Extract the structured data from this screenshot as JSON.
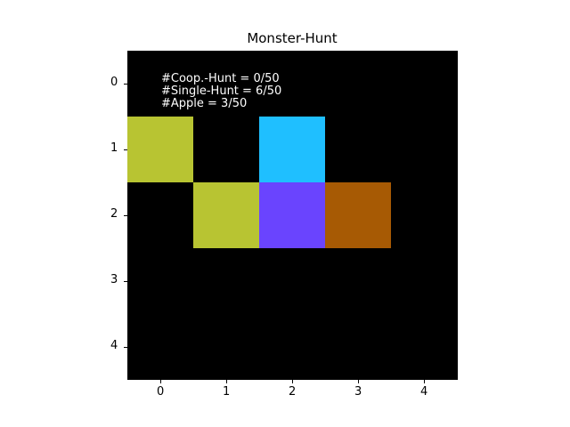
{
  "title": "Monster-Hunt",
  "grid": {
    "rows": 5,
    "cols": 5,
    "background": "#000000"
  },
  "cells": [
    {
      "row": 1,
      "col": 0,
      "color": "#b8c432",
      "entity": "agent"
    },
    {
      "row": 2,
      "col": 1,
      "color": "#b8c432",
      "entity": "agent"
    },
    {
      "row": 1,
      "col": 2,
      "color": "#1fbfff",
      "entity": "entity"
    },
    {
      "row": 2,
      "col": 2,
      "color": "#6a44fe",
      "entity": "entity"
    },
    {
      "row": 2,
      "col": 3,
      "color": "#a75a04",
      "entity": "entity"
    }
  ],
  "stats": {
    "coop_hunt": "#Coop.-Hunt = 0/50",
    "single_hunt": "#Single-Hunt = 6/50",
    "apple": "#Apple = 3/50"
  },
  "x_ticks": [
    "0",
    "1",
    "2",
    "3",
    "4"
  ],
  "y_ticks": [
    "0",
    "1",
    "2",
    "3",
    "4"
  ]
}
